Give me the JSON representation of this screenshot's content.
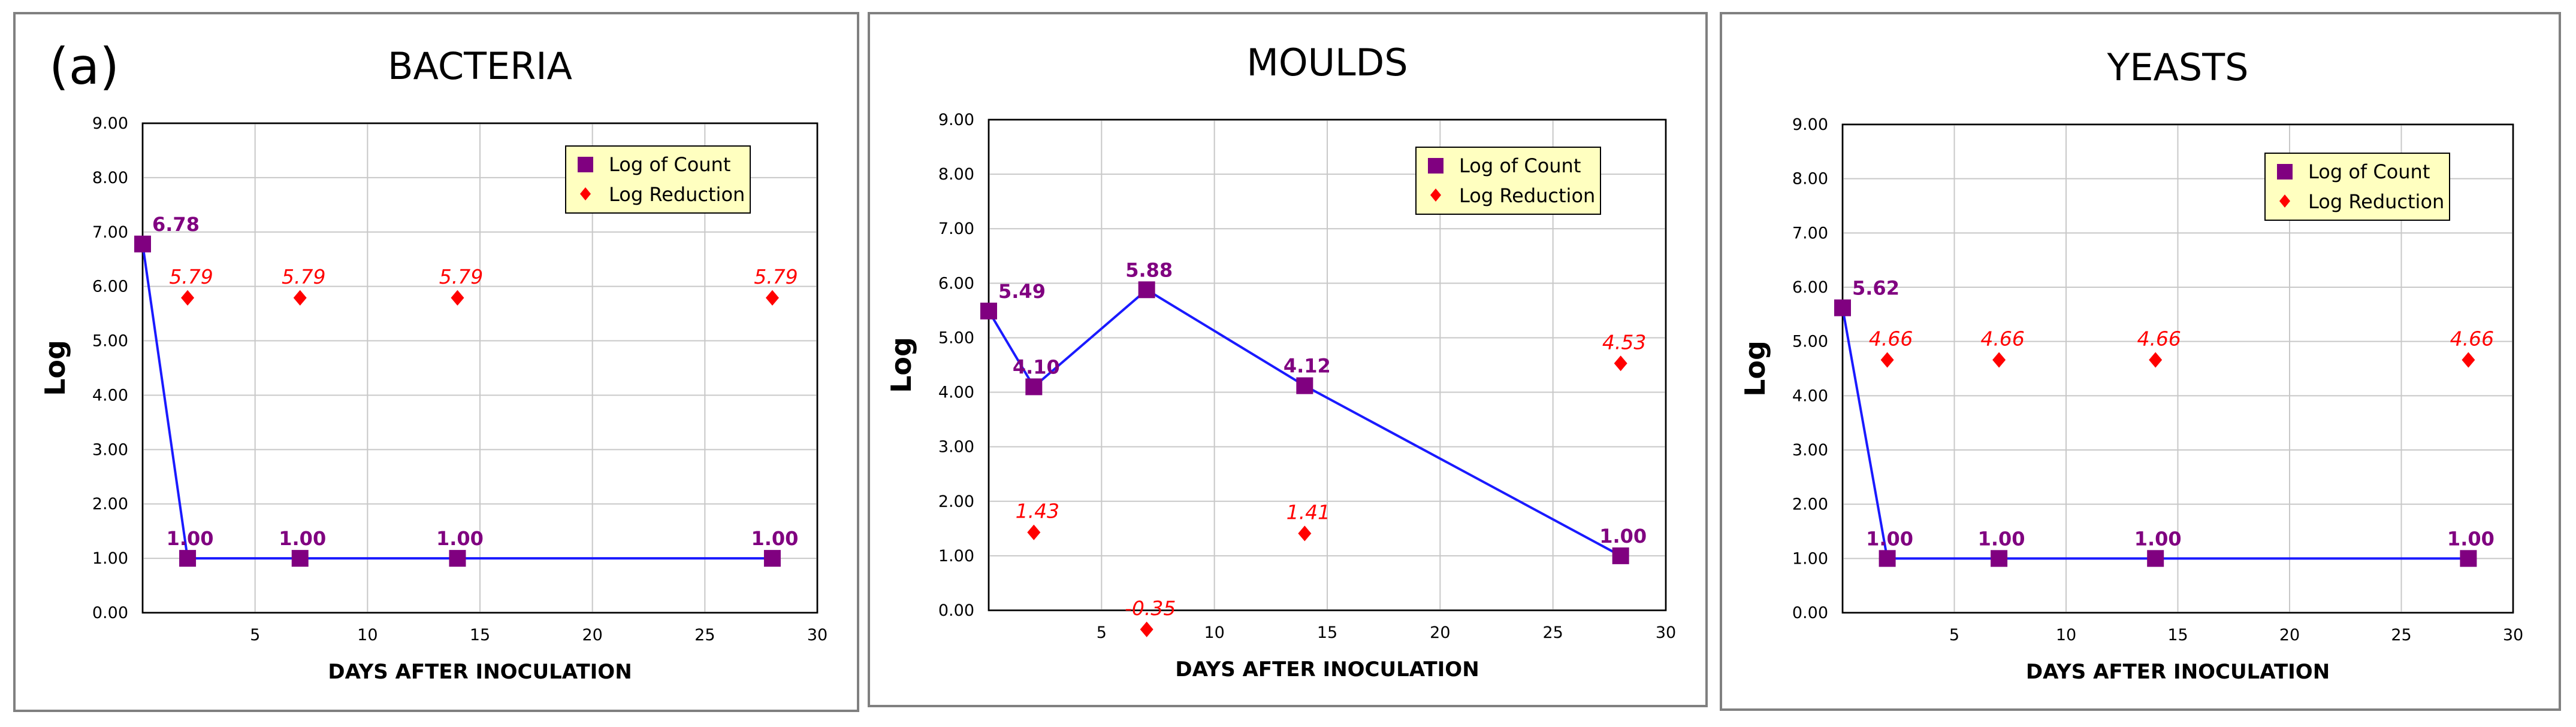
{
  "panel_label": "(a)",
  "colors": {
    "line": "#1a1aff",
    "count": "#800080",
    "reduction": "#ff0000",
    "legend_bg": "#ffffc0"
  },
  "chart_data": [
    {
      "type": "line",
      "title": "BACTERIA",
      "xlabel": "DAYS AFTER INOCULATION",
      "ylabel": "Log",
      "xlim": [
        0,
        30
      ],
      "ylim": [
        0,
        9
      ],
      "xticks": [
        5,
        10,
        15,
        20,
        25,
        30
      ],
      "yticks": [
        "0.00",
        "1.00",
        "2.00",
        "3.00",
        "4.00",
        "5.00",
        "6.00",
        "7.00",
        "8.00",
        "9.00"
      ],
      "legend": [
        "Log of Count",
        "Log Reduction"
      ],
      "legend_position": "top-right",
      "series": [
        {
          "name": "Log of Count",
          "x": [
            0,
            2,
            7,
            14,
            28
          ],
          "values": [
            6.78,
            1.0,
            1.0,
            1.0,
            1.0
          ],
          "labels": [
            "6.78",
            "1.00",
            "1.00",
            "1.00",
            "1.00"
          ]
        },
        {
          "name": "Log Reduction",
          "x": [
            2,
            7,
            14,
            28
          ],
          "values": [
            5.79,
            5.79,
            5.79,
            5.79
          ],
          "labels": [
            "5.79",
            "5.79",
            "5.79",
            "5.79"
          ]
        }
      ]
    },
    {
      "type": "line",
      "title": "MOULDS",
      "xlabel": "DAYS AFTER INOCULATION",
      "ylabel": "Log",
      "xlim": [
        0,
        30
      ],
      "ylim": [
        0,
        9
      ],
      "xticks": [
        5,
        10,
        15,
        20,
        25,
        30
      ],
      "yticks": [
        "0.00",
        "1.00",
        "2.00",
        "3.00",
        "4.00",
        "5.00",
        "6.00",
        "7.00",
        "8.00",
        "9.00"
      ],
      "legend": [
        "Log of Count",
        "Log Reduction"
      ],
      "legend_position": "top-right",
      "series": [
        {
          "name": "Log of Count",
          "x": [
            0,
            2,
            7,
            14,
            28
          ],
          "values": [
            5.49,
            4.1,
            5.88,
            4.12,
            1.0
          ],
          "labels": [
            "5.49",
            "4.10",
            "5.88",
            "4.12",
            "1.00"
          ]
        },
        {
          "name": "Log Reduction",
          "x": [
            2,
            7,
            14,
            28
          ],
          "values": [
            1.43,
            -0.35,
            1.41,
            4.53
          ],
          "labels": [
            "1.43",
            "-0.35",
            "1.41",
            "4.53"
          ]
        }
      ]
    },
    {
      "type": "line",
      "title": "YEASTS",
      "xlabel": "DAYS AFTER INOCULATION",
      "ylabel": "Log",
      "xlim": [
        0,
        30
      ],
      "ylim": [
        0,
        9
      ],
      "xticks": [
        5,
        10,
        15,
        20,
        25,
        30
      ],
      "yticks": [
        "0.00",
        "1.00",
        "2.00",
        "3.00",
        "4.00",
        "5.00",
        "6.00",
        "7.00",
        "8.00",
        "9.00"
      ],
      "legend": [
        "Log of Count",
        "Log Reduction"
      ],
      "legend_position": "top-right",
      "series": [
        {
          "name": "Log of Count",
          "x": [
            0,
            2,
            7,
            14,
            28
          ],
          "values": [
            5.62,
            1.0,
            1.0,
            1.0,
            1.0
          ],
          "labels": [
            "5.62",
            "1.00",
            "1.00",
            "1.00",
            "1.00"
          ]
        },
        {
          "name": "Log Reduction",
          "x": [
            2,
            7,
            14,
            28
          ],
          "values": [
            4.66,
            4.66,
            4.66,
            4.66
          ],
          "labels": [
            "4.66",
            "4.66",
            "4.66",
            "4.66"
          ]
        }
      ]
    }
  ]
}
